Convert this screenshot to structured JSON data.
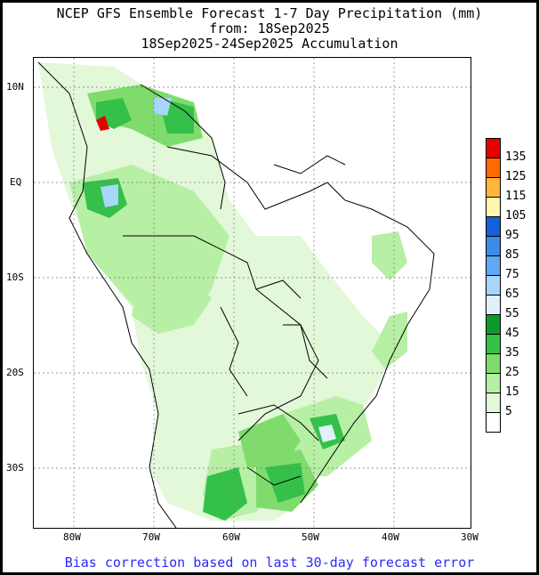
{
  "title": {
    "line1": "NCEP GFS Ensemble Forecast 1-7 Day Precipitation (mm)",
    "line2": "from: 18Sep2025",
    "line3": "18Sep2025-24Sep2025 Accumulation"
  },
  "axes": {
    "lat_labels": [
      "10N",
      "EQ",
      "10S",
      "20S",
      "30S"
    ],
    "lon_labels": [
      "80W",
      "70W",
      "60W",
      "50W",
      "40W",
      "30W"
    ]
  },
  "legend": {
    "labels": [
      "135",
      "125",
      "115",
      "105",
      "95",
      "85",
      "75",
      "65",
      "55",
      "45",
      "35",
      "25",
      "15",
      "5"
    ],
    "colors": [
      "#e60000",
      "#ff6a00",
      "#ffb63c",
      "#fff7b0",
      "#1560d6",
      "#3c8be6",
      "#5fa8f5",
      "#a9d6fb",
      "#dff2fb",
      "#0d9a2a",
      "#35c04a",
      "#7fdc6c",
      "#b7efa5",
      "#e2f8d9",
      "#ffffff"
    ]
  },
  "footer": "Bias correction based on last 30-day forecast error",
  "colors": {
    "background": "#ffffff",
    "frame": "#000000",
    "footer_text": "#2a2aff",
    "land_border": "#000000"
  }
}
